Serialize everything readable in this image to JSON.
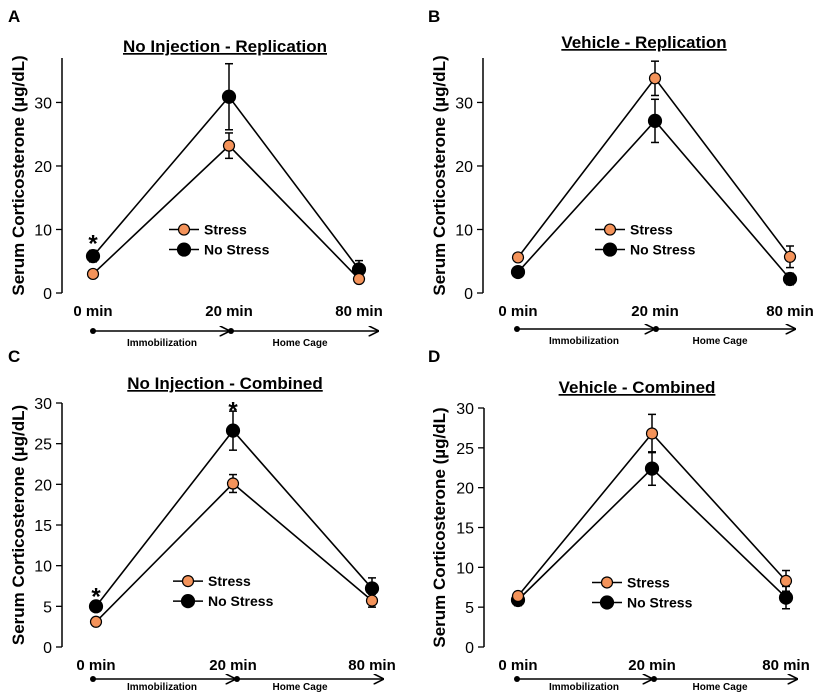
{
  "figure": {
    "panels": [
      "A",
      "B",
      "C",
      "D"
    ],
    "ylabel": "Serum Corticosterone (µg/dL)",
    "timeline": {
      "phase1": "Immobilization",
      "phase2": "Home Cage"
    }
  },
  "colors": {
    "stress": "#f4935a",
    "no_stress": "#000000",
    "axis": "#000000"
  },
  "chart_data": [
    {
      "panel": "A",
      "type": "line",
      "title": "No Injection - Replication",
      "categories": [
        "0 min",
        "20 min",
        "80 min"
      ],
      "ylim": [
        0,
        37
      ],
      "yticks": [
        0,
        10,
        20,
        30
      ],
      "series": [
        {
          "name": "Stress",
          "values": [
            3.0,
            23.2,
            2.2
          ],
          "errors": [
            0.4,
            2.0,
            0.5
          ]
        },
        {
          "name": "No Stress",
          "values": [
            5.8,
            30.9,
            3.7
          ],
          "errors": [
            0.9,
            5.2,
            1.4
          ]
        }
      ],
      "annotations": [
        {
          "text": "*",
          "index": 0,
          "value": 8.4
        }
      ],
      "legend": "center"
    },
    {
      "panel": "B",
      "type": "line",
      "title": "Vehicle - Replication",
      "categories": [
        "0 min",
        "20 min",
        "80 min"
      ],
      "ylim": [
        0,
        37
      ],
      "yticks": [
        0,
        10,
        20,
        30
      ],
      "series": [
        {
          "name": "Stress",
          "values": [
            5.6,
            33.8,
            5.7
          ],
          "errors": [
            0.6,
            2.7,
            1.7
          ]
        },
        {
          "name": "No Stress",
          "values": [
            3.3,
            27.1,
            2.2
          ],
          "errors": [
            0.5,
            3.4,
            0.9
          ]
        }
      ],
      "annotations": [],
      "legend": "center"
    },
    {
      "panel": "C",
      "type": "line",
      "title": "No Injection - Combined",
      "categories": [
        "0 min",
        "20 min",
        "80 min"
      ],
      "ylim": [
        0,
        30
      ],
      "yticks": [
        0,
        5,
        10,
        15,
        20,
        25,
        30
      ],
      "series": [
        {
          "name": "Stress",
          "values": [
            3.1,
            20.1,
            5.7
          ],
          "errors": [
            0.3,
            1.1,
            0.8
          ]
        },
        {
          "name": "No Stress",
          "values": [
            5.0,
            26.6,
            7.2
          ],
          "errors": [
            0.6,
            2.4,
            1.3
          ]
        }
      ],
      "annotations": [
        {
          "text": "*",
          "index": 0,
          "value": 6.7
        },
        {
          "text": "*",
          "index": 1,
          "value": 29.6
        }
      ],
      "legend": "center"
    },
    {
      "panel": "D",
      "type": "line",
      "title": "Vehicle - Combined",
      "categories": [
        "0 min",
        "20 min",
        "80 min"
      ],
      "ylim": [
        0,
        30
      ],
      "yticks": [
        0,
        5,
        10,
        15,
        20,
        25,
        30
      ],
      "series": [
        {
          "name": "Stress",
          "values": [
            6.4,
            26.8,
            8.3
          ],
          "errors": [
            0.5,
            2.4,
            1.3
          ]
        },
        {
          "name": "No Stress",
          "values": [
            5.9,
            22.4,
            6.2
          ],
          "errors": [
            0.7,
            2.1,
            1.4
          ]
        }
      ],
      "annotations": [],
      "legend": "center"
    }
  ]
}
